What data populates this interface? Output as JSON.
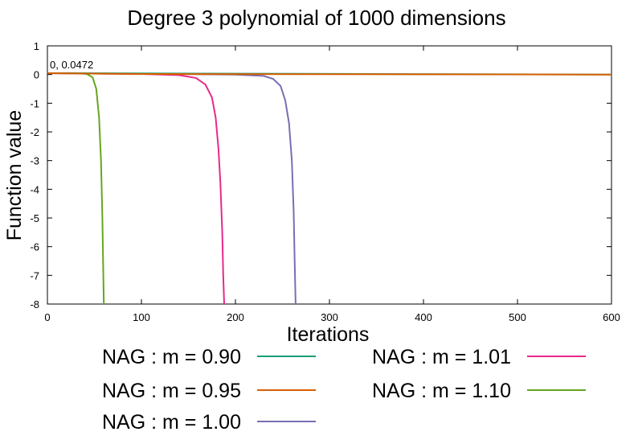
{
  "chart_data": {
    "type": "line",
    "title": "Degree 3 polynomial of 1000 dimensions",
    "xlabel": "Iterations",
    "ylabel": "Function value",
    "xlim": [
      0,
      600
    ],
    "ylim": [
      -8,
      1
    ],
    "xticks": [
      0,
      100,
      200,
      300,
      400,
      500,
      600
    ],
    "yticks": [
      1,
      0,
      -1,
      -2,
      -3,
      -4,
      -5,
      -6,
      -7,
      -8
    ],
    "grid": false,
    "legend_position": "bottom",
    "annotation": {
      "text": "0, 0.0472",
      "x": 0,
      "y": 0.0472
    },
    "series": [
      {
        "name": "NAG : m = 0.90",
        "color": "#1a9e77",
        "points": [
          [
            0,
            0.0472
          ],
          [
            600,
            0.0
          ]
        ]
      },
      {
        "name": "NAG : m = 0.95",
        "color": "#d95f02",
        "points": [
          [
            0,
            0.0472
          ],
          [
            100,
            0.02
          ],
          [
            300,
            0.01
          ],
          [
            600,
            0.0
          ]
        ]
      },
      {
        "name": "NAG : m = 1.00",
        "color": "#7570b3",
        "points": [
          [
            0,
            0.0472
          ],
          [
            100,
            0.03
          ],
          [
            200,
            0.0
          ],
          [
            230,
            -0.05
          ],
          [
            240,
            -0.15
          ],
          [
            248,
            -0.4
          ],
          [
            253,
            -0.9
          ],
          [
            257,
            -1.7
          ],
          [
            260,
            -3.0
          ],
          [
            262,
            -4.8
          ],
          [
            263,
            -6.5
          ],
          [
            264,
            -8
          ]
        ]
      },
      {
        "name": "NAG : m = 1.01",
        "color": "#e7298a",
        "points": [
          [
            0,
            0.0472
          ],
          [
            100,
            0.02
          ],
          [
            140,
            -0.02
          ],
          [
            158,
            -0.12
          ],
          [
            168,
            -0.35
          ],
          [
            175,
            -0.8
          ],
          [
            179,
            -1.5
          ],
          [
            182,
            -2.6
          ],
          [
            184,
            -3.8
          ],
          [
            186,
            -5.5
          ],
          [
            187,
            -7.0
          ],
          [
            188,
            -8
          ]
        ]
      },
      {
        "name": "NAG : m = 1.10",
        "color": "#66a61e",
        "points": [
          [
            0,
            0.0472
          ],
          [
            30,
            0.05
          ],
          [
            42,
            0.02
          ],
          [
            48,
            -0.1
          ],
          [
            52,
            -0.5
          ],
          [
            55,
            -1.5
          ],
          [
            57,
            -3.0
          ],
          [
            58.5,
            -5.0
          ],
          [
            59.5,
            -7.0
          ],
          [
            60,
            -8
          ]
        ]
      }
    ]
  }
}
